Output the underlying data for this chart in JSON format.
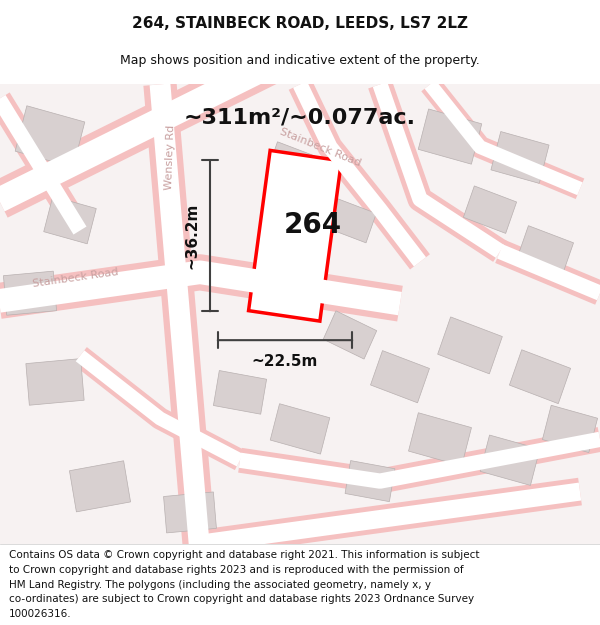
{
  "title": "264, STAINBECK ROAD, LEEDS, LS7 2LZ",
  "subtitle": "Map shows position and indicative extent of the property.",
  "area_text": "~311m²/~0.077ac.",
  "label_264": "264",
  "dim_height": "~36.2m",
  "dim_width": "~22.5m",
  "footer": "Contains OS data © Crown copyright and database right 2021. This information is subject to Crown copyright and database rights 2023 and is reproduced with the permission of HM Land Registry. The polygons (including the associated geometry, namely x, y co-ordinates) are subject to Crown copyright and database rights 2023 Ordnance Survey 100026316.",
  "bg_color": "#ffffff",
  "map_bg": "#f5f0f0",
  "road_color": "#f5c0c0",
  "road_fill": "#ffffff",
  "building_color": "#d8d0d0",
  "road_label_color": "#c8a0a0",
  "highlight_color": "#ff0000",
  "dim_color": "#404040",
  "title_fontsize": 11,
  "subtitle_fontsize": 9,
  "area_fontsize": 16,
  "label_fontsize": 20,
  "dim_fontsize": 11,
  "footer_fontsize": 7.5
}
